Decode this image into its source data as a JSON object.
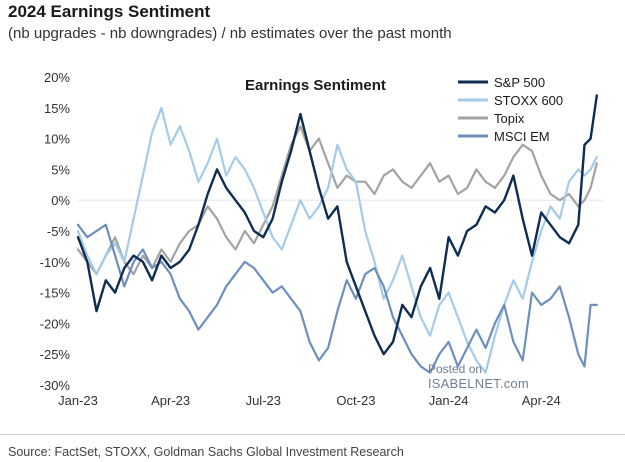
{
  "header": {
    "title": "2024 Earnings Sentiment",
    "subtitle": "(nb upgrades - nb downgrades) / nb estimates over the past month"
  },
  "footer": {
    "source": "Source: FactSet, STOXX, Goldman Sachs Global Investment Research"
  },
  "watermark": {
    "line1": "Posted on",
    "line2": "ISABELNET.com"
  },
  "chart_data": {
    "type": "line",
    "title": "Earnings Sentiment",
    "xlabel": "",
    "ylabel": "",
    "ylim": [
      -30,
      20
    ],
    "yticks": [
      -30,
      -25,
      -20,
      -15,
      -10,
      -5,
      0,
      5,
      10,
      15,
      20
    ],
    "ytick_labels": [
      "-30%",
      "-25%",
      "-20%",
      "-15%",
      "-10%",
      "-5%",
      "0%",
      "5%",
      "10%",
      "15%",
      "20%"
    ],
    "xlim": [
      0,
      17
    ],
    "xticks": [
      0,
      3,
      6,
      9,
      12,
      15
    ],
    "xtick_labels": [
      "Jan-23",
      "Apr-23",
      "Jul-23",
      "Oct-23",
      "Jan-24",
      "Apr-24"
    ],
    "legend_position": "top-right",
    "series": [
      {
        "name": "S&P 500",
        "color": "#0f2d52",
        "width": 2.4,
        "x": [
          0,
          0.3,
          0.6,
          0.9,
          1.2,
          1.5,
          1.8,
          2.1,
          2.4,
          2.7,
          3.0,
          3.3,
          3.6,
          3.9,
          4.2,
          4.5,
          4.8,
          5.1,
          5.4,
          5.7,
          6.0,
          6.3,
          6.6,
          6.9,
          7.2,
          7.5,
          7.8,
          8.1,
          8.4,
          8.7,
          9.0,
          9.3,
          9.6,
          9.9,
          10.2,
          10.5,
          10.8,
          11.1,
          11.4,
          11.7,
          12.0,
          12.3,
          12.6,
          12.9,
          13.2,
          13.5,
          13.8,
          14.1,
          14.4,
          14.7,
          15.0,
          15.3,
          15.6,
          15.9,
          16.2,
          16.4,
          16.6,
          16.8
        ],
        "y": [
          -6,
          -10,
          -18,
          -13,
          -15,
          -11,
          -9,
          -10,
          -13,
          -9,
          -11,
          -10,
          -8,
          -4,
          1,
          5,
          2,
          0,
          -2,
          -5,
          -6,
          -3,
          3,
          8,
          14,
          8,
          2,
          -3,
          -1,
          -10,
          -14,
          -18,
          -22,
          -25,
          -23,
          -17,
          -19,
          -14,
          -11,
          -16,
          -6,
          -9,
          -5,
          -4,
          -1,
          -2,
          0,
          4,
          -3,
          -9,
          -2,
          -4,
          -6,
          -7,
          -4,
          9,
          10,
          17
        ]
      },
      {
        "name": "STOXX 600",
        "color": "#a6cbea",
        "width": 2.2,
        "x": [
          0,
          0.3,
          0.6,
          0.9,
          1.2,
          1.5,
          1.8,
          2.1,
          2.4,
          2.7,
          3.0,
          3.3,
          3.6,
          3.9,
          4.2,
          4.5,
          4.8,
          5.1,
          5.4,
          5.7,
          6.0,
          6.3,
          6.6,
          6.9,
          7.2,
          7.5,
          7.8,
          8.1,
          8.4,
          8.7,
          9.0,
          9.3,
          9.6,
          9.9,
          10.2,
          10.5,
          10.8,
          11.1,
          11.4,
          11.7,
          12.0,
          12.3,
          12.6,
          12.9,
          13.2,
          13.5,
          13.8,
          14.1,
          14.4,
          14.7,
          15.0,
          15.3,
          15.6,
          15.9,
          16.2,
          16.4,
          16.6,
          16.8
        ],
        "y": [
          -5,
          -9,
          -12,
          -9,
          -7,
          -10,
          -3,
          4,
          11,
          15,
          9,
          12,
          8,
          3,
          6,
          10,
          4,
          7,
          5,
          2,
          -2,
          -6,
          -8,
          -4,
          0,
          -3,
          -1,
          2,
          9,
          5,
          3,
          -5,
          -10,
          -16,
          -13,
          -9,
          -14,
          -19,
          -22,
          -17,
          -15,
          -19,
          -23,
          -26,
          -28,
          -22,
          -17,
          -13,
          -16,
          -10,
          -5,
          -1,
          -3,
          3,
          5,
          4,
          5,
          7
        ]
      },
      {
        "name": "Topix",
        "color": "#a3a3a3",
        "width": 2.2,
        "x": [
          0,
          0.3,
          0.6,
          0.9,
          1.2,
          1.5,
          1.8,
          2.1,
          2.4,
          2.7,
          3.0,
          3.3,
          3.6,
          3.9,
          4.2,
          4.5,
          4.8,
          5.1,
          5.4,
          5.7,
          6.0,
          6.3,
          6.6,
          6.9,
          7.2,
          7.5,
          7.8,
          8.1,
          8.4,
          8.7,
          9.0,
          9.3,
          9.6,
          9.9,
          10.2,
          10.5,
          10.8,
          11.1,
          11.4,
          11.7,
          12.0,
          12.3,
          12.6,
          12.9,
          13.2,
          13.5,
          13.8,
          14.1,
          14.4,
          14.7,
          15.0,
          15.3,
          15.6,
          15.9,
          16.2,
          16.4,
          16.6,
          16.8
        ],
        "y": [
          -8,
          -10,
          -12,
          -9,
          -6,
          -10,
          -12,
          -9,
          -11,
          -8,
          -10,
          -7,
          -5,
          -4,
          -1,
          -3,
          -6,
          -8,
          -5,
          -7,
          -4,
          -1,
          4,
          9,
          12,
          8,
          10,
          6,
          2,
          4,
          3,
          3,
          1,
          4,
          5,
          3,
          2,
          4,
          6,
          3,
          4,
          1,
          2,
          5,
          3,
          2,
          4,
          7,
          9,
          8,
          4,
          1,
          0,
          1,
          -1,
          0,
          2,
          6
        ]
      },
      {
        "name": "MSCI EM",
        "color": "#6e8fbc",
        "width": 2.2,
        "x": [
          0,
          0.3,
          0.6,
          0.9,
          1.2,
          1.5,
          1.8,
          2.1,
          2.4,
          2.7,
          3.0,
          3.3,
          3.6,
          3.9,
          4.2,
          4.5,
          4.8,
          5.1,
          5.4,
          5.7,
          6.0,
          6.3,
          6.6,
          6.9,
          7.2,
          7.5,
          7.8,
          8.1,
          8.4,
          8.7,
          9.0,
          9.3,
          9.6,
          9.9,
          10.2,
          10.5,
          10.8,
          11.1,
          11.4,
          11.7,
          12.0,
          12.3,
          12.6,
          12.9,
          13.2,
          13.5,
          13.8,
          14.1,
          14.4,
          14.7,
          15.0,
          15.3,
          15.6,
          15.9,
          16.2,
          16.4,
          16.6,
          16.8
        ],
        "y": [
          -4,
          -6,
          -5,
          -4,
          -9,
          -14,
          -10,
          -8,
          -11,
          -10,
          -12,
          -16,
          -18,
          -21,
          -19,
          -17,
          -14,
          -12,
          -10,
          -11,
          -13,
          -15,
          -14,
          -16,
          -18,
          -23,
          -26,
          -24,
          -18,
          -13,
          -16,
          -12,
          -11,
          -14,
          -19,
          -22,
          -25,
          -27,
          -28,
          -25,
          -23,
          -27,
          -24,
          -21,
          -24,
          -20,
          -17,
          -23,
          -26,
          -15,
          -17,
          -16,
          -14,
          -19,
          -25,
          -27,
          -17,
          -17
        ]
      }
    ]
  }
}
